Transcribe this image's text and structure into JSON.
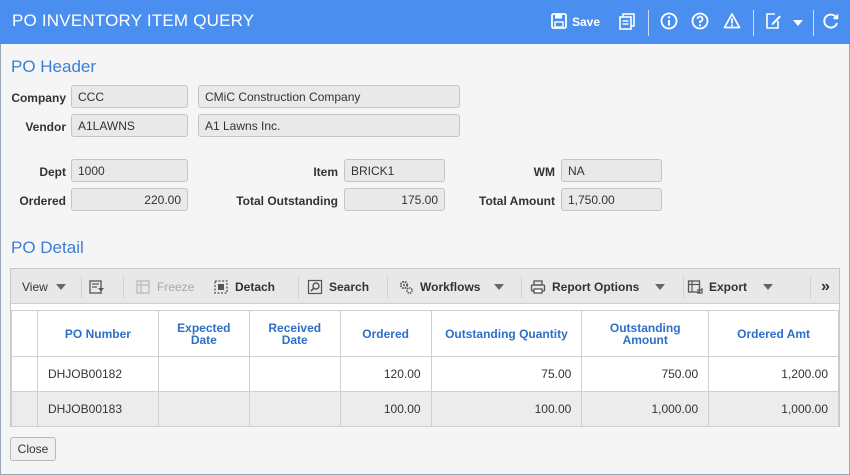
{
  "window": {
    "title": "PO INVENTORY ITEM QUERY"
  },
  "titlebar": {
    "save_label": "Save",
    "icons": [
      "save-icon",
      "clipboard-icon",
      "info-icon",
      "help-icon",
      "warning-icon",
      "edit-icon",
      "dropdown-icon",
      "refresh-icon"
    ]
  },
  "header": {
    "section_title": "PO Header",
    "company_label": "Company",
    "company_code": "CCC",
    "company_name": "CMiC Construction Company",
    "vendor_label": "Vendor",
    "vendor_code": "A1LAWNS",
    "vendor_name": "A1 Lawns Inc.",
    "dept_label": "Dept",
    "dept_value": "1000",
    "item_label": "Item",
    "item_value": "BRICK1",
    "wm_label": "WM",
    "wm_value": "NA",
    "ordered_label": "Ordered",
    "ordered_value": "220.00",
    "total_outstanding_label": "Total Outstanding",
    "total_outstanding_value": "175.00",
    "total_amount_label": "Total Amount",
    "total_amount_value": "1,750.00"
  },
  "detail": {
    "section_title": "PO Detail",
    "toolbar": {
      "view": "View",
      "freeze": "Freeze",
      "detach": "Detach",
      "search": "Search",
      "workflows": "Workflows",
      "report_options": "Report Options",
      "export": "Export",
      "more": "»"
    },
    "columns": [
      "PO Number",
      "Expected Date",
      "Received Date",
      "Ordered",
      "Outstanding Quantity",
      "Outstanding Amount",
      "Ordered Amt"
    ],
    "rows": [
      {
        "po_number": "DHJOB00182",
        "expected_date": "",
        "received_date": "",
        "ordered": "120.00",
        "outstanding_qty": "75.00",
        "outstanding_amt": "750.00",
        "ordered_amt": "1,200.00"
      },
      {
        "po_number": "DHJOB00183",
        "expected_date": "",
        "received_date": "",
        "ordered": "100.00",
        "outstanding_qty": "100.00",
        "outstanding_amt": "1,000.00",
        "ordered_amt": "1,000.00"
      }
    ]
  },
  "footer": {
    "close_label": "Close"
  },
  "colors": {
    "titlebar": "#4a8ef0",
    "section_title": "#3a7fd5",
    "column_header": "#2d6fc8"
  }
}
